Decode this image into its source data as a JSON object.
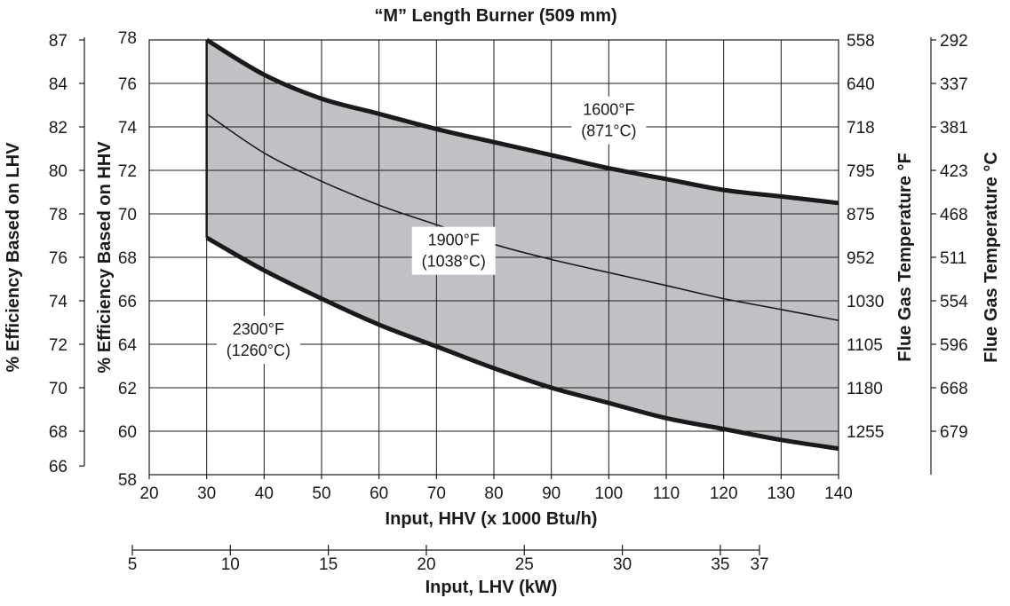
{
  "chart_data": {
    "type": "area",
    "title": "“M” Length Burner (509 mm)",
    "xlabel": "Input, HHV (x 1000 Btu/h)",
    "xlabel2": "Input, LHV (kW)",
    "ylabel_left_outer": "% Efficiency Based on LHV",
    "ylabel_left_inner": "% Efficiency Based on HHV",
    "ylabel_right_inner": "Flue Gas Temperature °F",
    "ylabel_right_outer": "Flue Gas Temperature °C",
    "xlim": [
      20,
      140
    ],
    "ylim": [
      58,
      78
    ],
    "x_ticks": [
      "20",
      "30",
      "40",
      "50",
      "60",
      "70",
      "80",
      "90",
      "100",
      "110",
      "120",
      "130",
      "140"
    ],
    "y_ticks_hhv": [
      "58",
      "60",
      "62",
      "64",
      "66",
      "68",
      "70",
      "72",
      "74",
      "76",
      "78"
    ],
    "y_ticks_lhv": [
      {
        "label": "87",
        "hhv": 78
      },
      {
        "label": "84",
        "hhv": 76
      },
      {
        "label": "82",
        "hhv": 74
      },
      {
        "label": "80",
        "hhv": 72
      },
      {
        "label": "78",
        "hhv": 70
      },
      {
        "label": "76",
        "hhv": 68
      },
      {
        "label": "74",
        "hhv": 66
      },
      {
        "label": "72",
        "hhv": 64
      },
      {
        "label": "70",
        "hhv": 62
      },
      {
        "label": "68",
        "hhv": 60
      },
      {
        "label": "66",
        "hhv": 58.4
      }
    ],
    "right_ticks_f": [
      {
        "label": "558",
        "hhv": 78
      },
      {
        "label": "640",
        "hhv": 76
      },
      {
        "label": "718",
        "hhv": 74
      },
      {
        "label": "795",
        "hhv": 72
      },
      {
        "label": "875",
        "hhv": 70
      },
      {
        "label": "952",
        "hhv": 68
      },
      {
        "label": "1030",
        "hhv": 66
      },
      {
        "label": "1105",
        "hhv": 64
      },
      {
        "label": "1180",
        "hhv": 62
      },
      {
        "label": "1255",
        "hhv": 60
      }
    ],
    "right_ticks_c": [
      {
        "label": "292",
        "hhv": 78
      },
      {
        "label": "337",
        "hhv": 76
      },
      {
        "label": "381",
        "hhv": 74
      },
      {
        "label": "423",
        "hhv": 72
      },
      {
        "label": "468",
        "hhv": 70
      },
      {
        "label": "511",
        "hhv": 68
      },
      {
        "label": "554",
        "hhv": 66
      },
      {
        "label": "596",
        "hhv": 64
      },
      {
        "label": "668",
        "hhv": 62
      },
      {
        "label": "679",
        "hhv": 60
      }
    ],
    "lhv_axis_ticks": [
      {
        "label": "5",
        "btu": 17.06
      },
      {
        "label": "10",
        "btu": 34.12
      },
      {
        "label": "15",
        "btu": 51.18
      },
      {
        "label": "20",
        "btu": 68.24
      },
      {
        "label": "25",
        "btu": 85.3
      },
      {
        "label": "30",
        "btu": 102.36
      },
      {
        "label": "35",
        "btu": 119.42
      },
      {
        "label": "37",
        "btu": 126.24
      }
    ],
    "series": [
      {
        "name": "1600°F (871°C)",
        "label_lines": [
          "1600°F",
          "(871°C)"
        ],
        "label_at": [
          100,
          74.3
        ],
        "weight": "heavy",
        "x": [
          30,
          40,
          50,
          60,
          70,
          80,
          90,
          100,
          110,
          120,
          130,
          140
        ],
        "y": [
          78,
          76.4,
          75.3,
          74.6,
          73.9,
          73.3,
          72.7,
          72.1,
          71.6,
          71.1,
          70.8,
          70.5
        ]
      },
      {
        "name": "1900°F (1038°C)",
        "label_lines": [
          "1900°F",
          "(1038°C)"
        ],
        "label_at": [
          73,
          68.3
        ],
        "weight": "thin",
        "x": [
          30,
          40,
          50,
          60,
          70,
          80,
          90,
          100,
          110,
          120,
          130,
          140
        ],
        "y": [
          74.6,
          72.8,
          71.5,
          70.4,
          69.5,
          68.6,
          67.9,
          67.3,
          66.7,
          66.1,
          65.6,
          65.1
        ]
      },
      {
        "name": "2300°F (1260°C)",
        "label_lines": [
          "2300°F",
          "(1260°C)"
        ],
        "label_at": [
          39,
          64.2
        ],
        "weight": "heavy",
        "x": [
          30,
          40,
          50,
          60,
          70,
          80,
          90,
          100,
          110,
          120,
          130,
          140
        ],
        "y": [
          68.9,
          67.4,
          66.1,
          64.9,
          63.9,
          62.9,
          62.0,
          61.3,
          60.6,
          60.1,
          59.6,
          59.2
        ]
      }
    ],
    "shaded_band": {
      "between": [
        "1600°F (871°C)",
        "2300°F (1260°C)"
      ],
      "color": "#c0c1c5"
    },
    "grid": true
  }
}
